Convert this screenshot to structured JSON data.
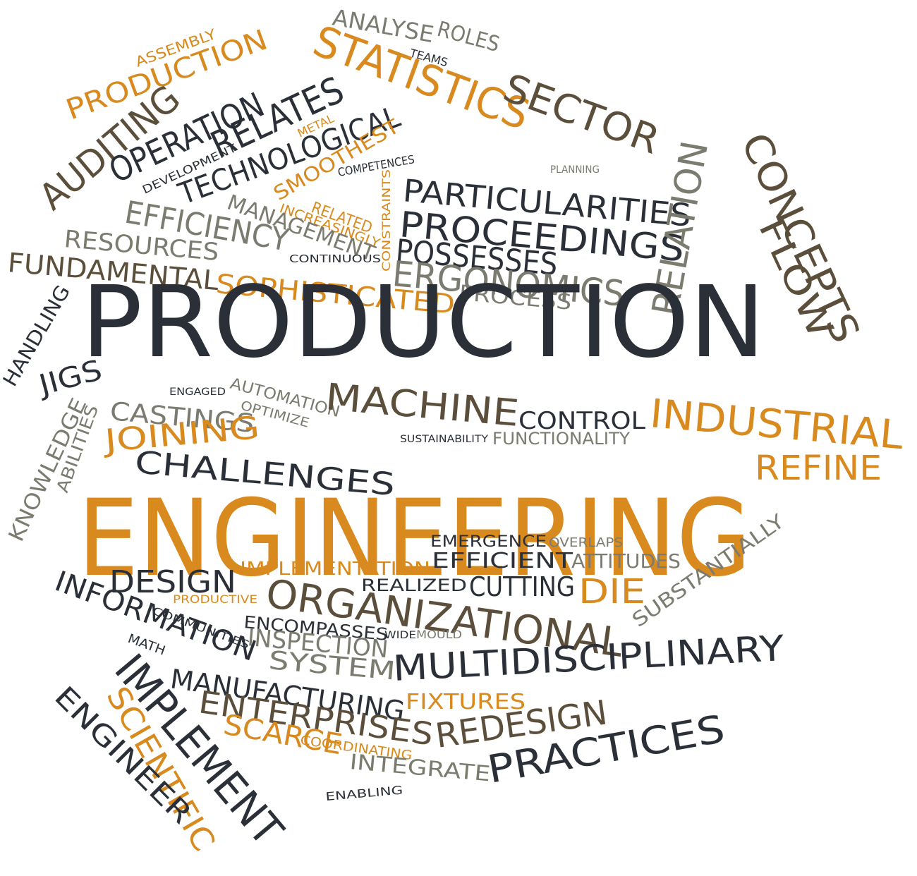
{
  "words": [
    "ANALYSE",
    "ROLES",
    "TEAMS",
    "ASSEMBLY",
    "PRODUCTION",
    "STATISTICS",
    "SECTOR",
    "AUDITING",
    "OPERATION",
    "RELATES",
    "DEVELOPMENT",
    "METAL",
    "TECHNOLOGICAL",
    "SMOOTHEST",
    "COMPETENCES",
    "PLANNING",
    "PARTICULARITIES",
    "PROCEEDINGS",
    "POSSESSES",
    "ERGONOMICS",
    "CONSTRAINTS",
    "RELATED",
    "INCREASINGLY",
    "MANAGEMENT",
    "EFFICIENCY",
    "RESOURCES",
    "FUNDAMENTAL",
    "CONTINUOUS",
    "SOPHISTICATED",
    "PROCESS",
    "RELATION",
    "CONCEPTS",
    "FLOW",
    "PRODUCTION",
    "HANDLING",
    "JIGS",
    "ENGAGED",
    "AUTOMATION",
    "OPTIMIZE",
    "CASTINGS",
    "MACHINE",
    "CONTROL",
    "INDUSTRIAL",
    "KNOWLEDGE",
    "ABILITIES",
    "JOINING",
    "CHALLENGES",
    "SUSTAINABILITY",
    "FUNCTIONALITY",
    "REFINE",
    "ENGINEERING",
    "EMERGENCE",
    "OVERLAPS",
    "ATTITUDES",
    "EFFICIENT",
    "IMPLEMENTATION",
    "DESIGN",
    "DIE",
    "REALIZED",
    "CUTTING",
    "SUBSTANTIALLY",
    "PRODUCTIVE",
    "ORGANIZATIONAL",
    "INFORMATION",
    "COMMUNITIES",
    "ENCOMPASSES",
    "MATH",
    "INSPECTION",
    "WIDE",
    "MOULD",
    "SYSTEM",
    "MULTIDISCIPLINARY",
    "IMPLEMENT",
    "MANUFACTURING",
    "FIXTURES",
    "ENTERPRISES",
    "REDESIGN",
    "PRACTICES",
    "SCIENTIFIC",
    "ENGINEER",
    "SCARCE",
    "COORDINATING",
    "INTEGRATE",
    "ENABLING"
  ]
}
